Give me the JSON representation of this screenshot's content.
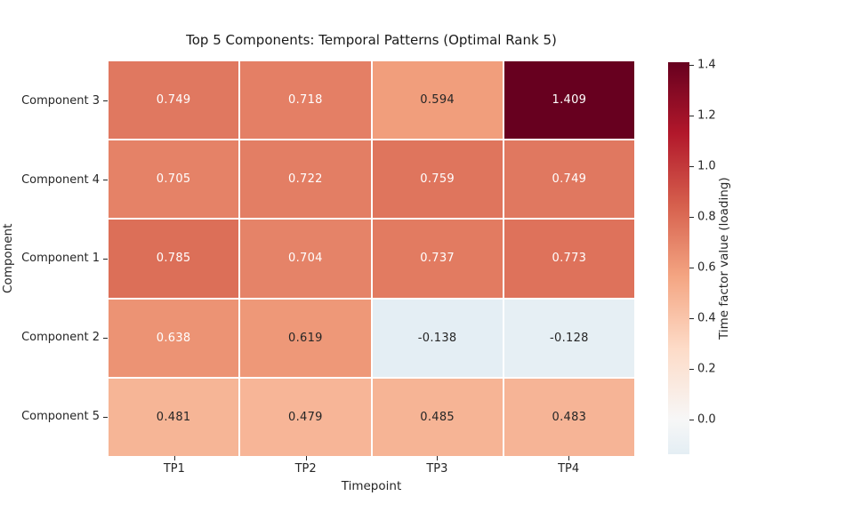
{
  "chart_data": {
    "type": "heatmap",
    "title": "Top 5 Components: Temporal Patterns (Optimal Rank 5)",
    "xlabel": "Timepoint",
    "ylabel": "Component",
    "x_categories": [
      "TP1",
      "TP2",
      "TP3",
      "TP4"
    ],
    "y_categories": [
      "Component 3",
      "Component 4",
      "Component 1",
      "Component 2",
      "Component 5"
    ],
    "values": [
      [
        0.749,
        0.718,
        0.594,
        1.409
      ],
      [
        0.705,
        0.722,
        0.759,
        0.749
      ],
      [
        0.785,
        0.704,
        0.737,
        0.773
      ],
      [
        0.638,
        0.619,
        -0.138,
        -0.128
      ],
      [
        0.481,
        0.479,
        0.485,
        0.483
      ]
    ],
    "vmin": -0.138,
    "vmax": 1.409,
    "colormap": "RdBu_r centered at 0",
    "grid_line_color": "#ffffff",
    "cell_colors": [
      [
        "#e07860",
        "#e47f65",
        "#f19e7c",
        "#67001f"
      ],
      [
        "#e58267",
        "#e37e64",
        "#df755d",
        "#e07860"
      ],
      [
        "#dc6f58",
        "#e58368",
        "#e27b61",
        "#de725b"
      ],
      [
        "#ec9374",
        "#ee9878",
        "#e4eef4",
        "#e6eff4"
      ],
      [
        "#f6b596",
        "#f7b597",
        "#f6b495",
        "#f6b496"
      ]
    ],
    "cell_text_colors": [
      [
        "#ffffff",
        "#ffffff",
        "#262626",
        "#ffffff"
      ],
      [
        "#ffffff",
        "#ffffff",
        "#ffffff",
        "#ffffff"
      ],
      [
        "#ffffff",
        "#ffffff",
        "#ffffff",
        "#ffffff"
      ],
      [
        "#ffffff",
        "#262626",
        "#262626",
        "#262626"
      ],
      [
        "#262626",
        "#262626",
        "#262626",
        "#262626"
      ]
    ],
    "colorbar": {
      "label": "Time factor value (loading)",
      "ticks": [
        1.4,
        1.2,
        1.0,
        0.8,
        0.6,
        0.4,
        0.2,
        0.0
      ],
      "gradient": [
        {
          "color": "#67001f",
          "pos": 0
        },
        {
          "color": "#b2182b",
          "pos": 18.2
        },
        {
          "color": "#d6604d",
          "pos": 36.5
        },
        {
          "color": "#f4a582",
          "pos": 54.6
        },
        {
          "color": "#fddbc7",
          "pos": 72.9
        },
        {
          "color": "#f7f7f7",
          "pos": 91.1
        },
        {
          "color": "#e4eef4",
          "pos": 100
        }
      ]
    },
    "legend_position": "right",
    "grid": false
  }
}
